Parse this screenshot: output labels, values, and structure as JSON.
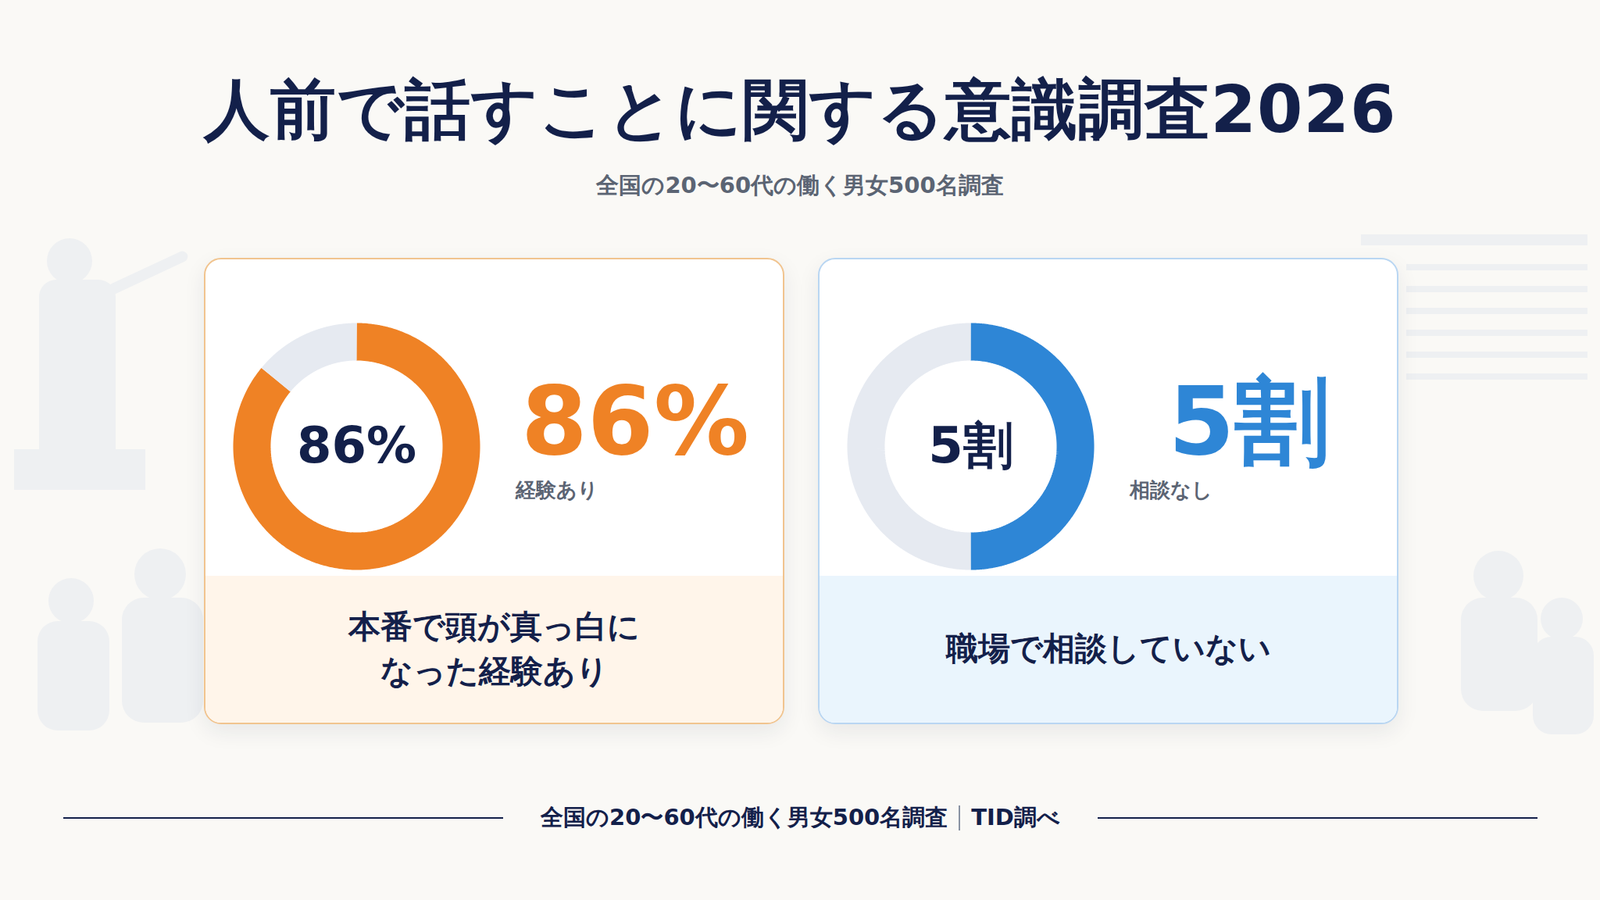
{
  "title": "人前で話すことに関する意識調査2026",
  "subtitle": "全国の20〜60代の働く男女500名調査",
  "footer": {
    "text": "全国の20〜60代の働く男女500名調査",
    "source": "TID調べ"
  },
  "chart_data": [
    {
      "type": "pie",
      "categories": [
        "経験あり",
        null
      ],
      "values": [
        86,
        14
      ],
      "value_labels": [
        "86%",
        null
      ],
      "colors": [
        "#ef8225",
        "#e6eaf1"
      ],
      "data_labels": true,
      "caption": "本番で頭が真っ白に\nなった経験あり"
    },
    {
      "type": "pie",
      "categories": [
        "相談なし",
        null
      ],
      "values": [
        5,
        5
      ],
      "value_labels": [
        "5割",
        null
      ],
      "colors": [
        "#2e86d6",
        "#e6eaf1"
      ],
      "data_labels": true,
      "caption": "職場で相談していない"
    }
  ]
}
